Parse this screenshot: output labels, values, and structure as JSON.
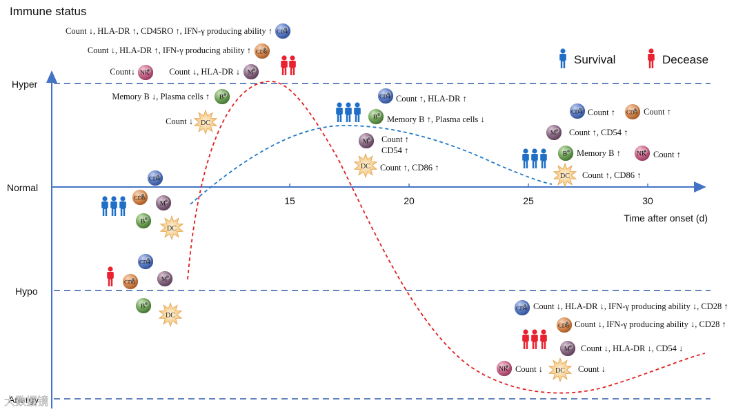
{
  "title": "Immune status",
  "y_levels": [
    "Hyper",
    "Normal",
    "Hypo",
    "Anergy"
  ],
  "x_axis": {
    "ticks": [
      "15",
      "20",
      "25",
      "30"
    ],
    "label": "Time after onset (d)"
  },
  "legend": {
    "survival": "Survival",
    "decease": "Decease"
  },
  "cell_labels": {
    "cd4": "CD4",
    "cd8": "CD8",
    "nk": "NK",
    "m": "M",
    "b": "B",
    "dc": "DC"
  },
  "annotations": {
    "early_cd4": "Count ↓, HLA-DR ↑, CD45RO ↑, IFN-γ producing ability ↑",
    "early_cd8": "Count ↓, HLA-DR ↑, IFN-γ producing ability ↑",
    "early_nk": "Count↓",
    "early_m": "Count ↓, HLA-DR ↓",
    "early_b": "Memory B ↓, Plasma cells ↑",
    "early_dc": "Count ↓",
    "mid_cd4": "Count ↑, HLA-DR ↑",
    "mid_b": "Memory B ↑, Plasma cells ↓",
    "mid_m1": "Count ↑",
    "mid_m2": "CD54 ↑",
    "mid_dc": "Count ↑, CD86 ↑",
    "late_cd4": "Count ↑",
    "late_cd8": "Count ↑",
    "late_m": "Count ↑, CD54 ↑",
    "late_b": "Memory B ↑",
    "late_nk": "Count ↑",
    "late_dc": "Count ↑, CD86 ↑",
    "dec_cd4": "Count ↓, HLA-DR ↓, IFN-γ producing ability ↓, CD28 ↑",
    "dec_cd8": "Count ↓, IFN-γ producing ability ↓, CD28 ↑",
    "dec_m": "Count ↓, HLA-DR ↓, CD54 ↓",
    "dec_nk": "Count ↓",
    "dec_dc": "Count ↓"
  },
  "watermark": "大数据镜",
  "colors": {
    "axis": "#4472c4",
    "dashed": "#2e5aa8",
    "survival": "#1f6fc6",
    "decease": "#e8222f",
    "survival_curve": "#1f78c8",
    "decease_curve": "#e02020",
    "cd4": "#4f6fb8",
    "cd8": "#d0834d",
    "nk": "#c2607e",
    "m": "#7f5f78",
    "b": "#6a9c52",
    "dc": "#f2c47a"
  }
}
